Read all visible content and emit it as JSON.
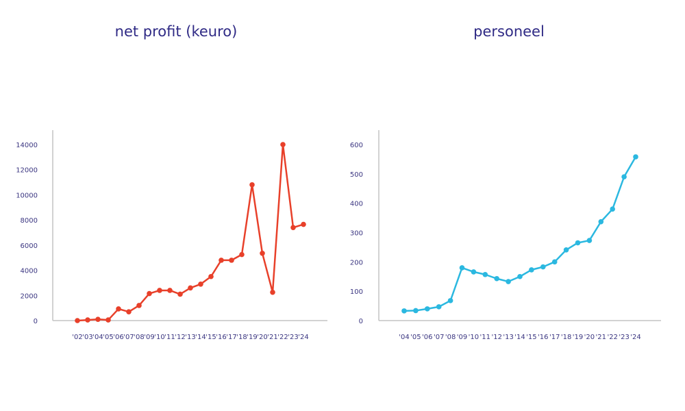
{
  "chart_data": [
    {
      "type": "line",
      "title": "net profit (keuro)",
      "color": "#e8402a",
      "categories": [
        "'02",
        "'03",
        "'04",
        "'05",
        "'06",
        "'07",
        "'08",
        "'09",
        "'10",
        "'11",
        "'12",
        "'13",
        "'14",
        "'15",
        "'16",
        "'17",
        "'18",
        "'19",
        "'20",
        "'21",
        "'22",
        "'23",
        "'24"
      ],
      "values": [
        0,
        50,
        100,
        50,
        930,
        700,
        1200,
        2150,
        2400,
        2400,
        2100,
        2600,
        2900,
        3500,
        4800,
        4800,
        5250,
        10800,
        5350,
        2250,
        14000,
        7400,
        7650
      ],
      "yticks": [
        "0",
        "2000",
        "4000",
        "6000",
        "8000",
        "10000",
        "12000",
        "14000"
      ],
      "ylim": [
        0,
        14000
      ],
      "grid": false
    },
    {
      "type": "line",
      "title": "personeel",
      "color": "#2bb8e0",
      "categories": [
        "'04",
        "'05",
        "'06",
        "'07",
        "'08",
        "'09",
        "'10",
        "'11",
        "'12",
        "'13",
        "'14",
        "'15",
        "'16",
        "'17",
        "'18",
        "'19",
        "'20",
        "'21",
        "'22",
        "'23",
        "'24"
      ],
      "values": [
        33,
        34,
        40,
        47,
        68,
        180,
        166,
        157,
        143,
        133,
        150,
        173,
        183,
        200,
        241,
        265,
        273,
        337,
        380,
        490,
        558
      ],
      "yticks": [
        "0",
        "100",
        "200",
        "300",
        "400",
        "500",
        "600"
      ],
      "ylim": [
        0,
        600
      ],
      "grid": false
    }
  ]
}
